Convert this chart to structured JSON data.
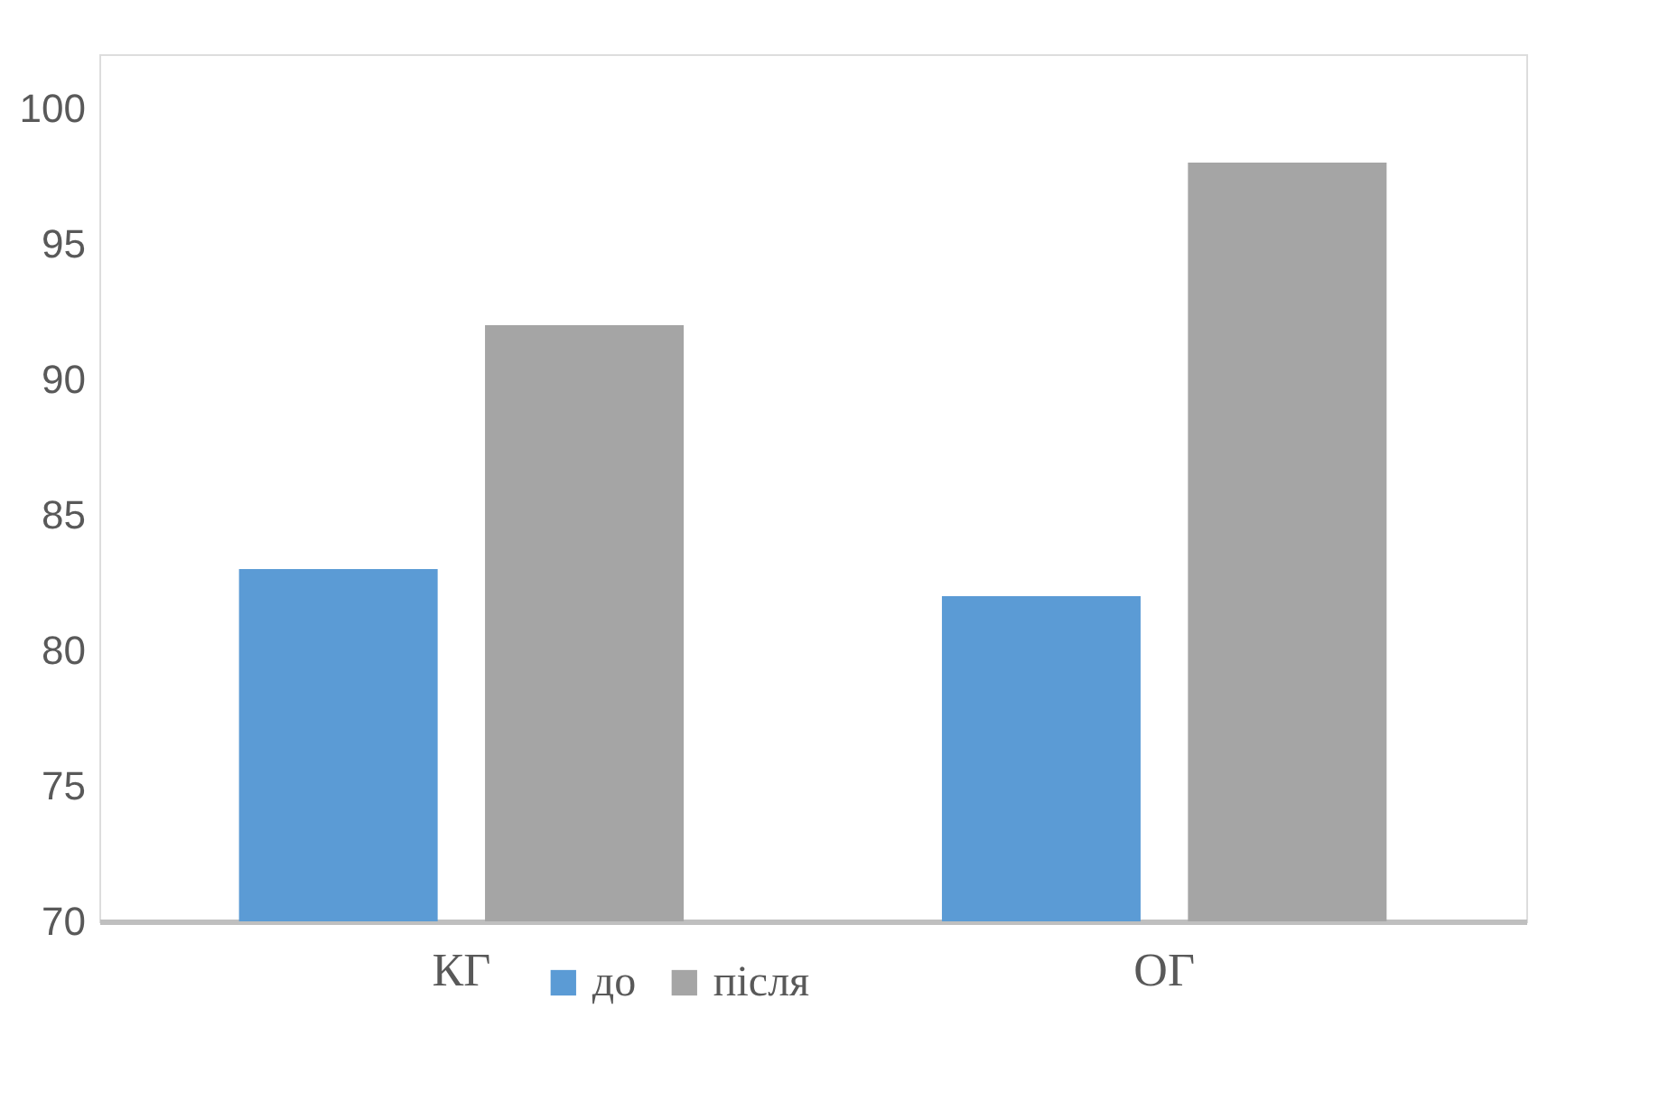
{
  "chart_data": {
    "type": "bar",
    "categories": [
      "КГ",
      "ОГ"
    ],
    "series": [
      {
        "name": "до",
        "color": "#5b9bd5",
        "values": [
          83,
          82
        ]
      },
      {
        "name": "після",
        "color": "#a5a5a5",
        "values": [
          92,
          98
        ]
      }
    ],
    "ylim": [
      70,
      102
    ],
    "yticks": [
      70,
      75,
      80,
      85,
      90,
      95,
      100
    ],
    "grid": false,
    "legend": "bottom"
  }
}
